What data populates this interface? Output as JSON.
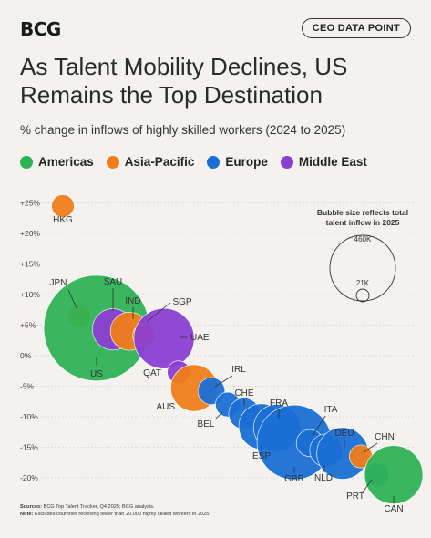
{
  "header": {
    "logo": "BCG",
    "badge": "CEO DATA POINT",
    "title": "As Talent Mobility Declines, US Remains the Top Destination",
    "subtitle": "% change in inflows of highly skilled workers (2024 to 2025)"
  },
  "legend": [
    {
      "label": "Americas",
      "color": "#2fb255"
    },
    {
      "label": "Asia-Pacific",
      "color": "#f07d1a"
    },
    {
      "label": "Europe",
      "color": "#1a6fd4"
    },
    {
      "label": "Middle East",
      "color": "#8a3fd1"
    }
  ],
  "size_legend": {
    "title_line1": "Bubble size reflects total",
    "title_line2": "talent inflow in 2025",
    "large_label": "460K",
    "small_label": "21K"
  },
  "chart_data": {
    "type": "scatter",
    "subtype": "bubble",
    "ylabel": "% change in inflows of highly skilled workers (2024 to 2025)",
    "y_ticks": [
      "+25%",
      "+20%",
      "+15%",
      "+10%",
      "+5%",
      "0%",
      "-5%",
      "-10%",
      "-15%",
      "-20%"
    ],
    "ylim": [
      -22,
      26
    ],
    "points": [
      {
        "label": "HKG",
        "region": "Asia-Pacific",
        "y": 24.5,
        "size": 21
      },
      {
        "label": "JPN",
        "region": "Asia-Pacific",
        "y": 6.5,
        "size": 21
      },
      {
        "label": "US",
        "region": "Americas",
        "y": 4.5,
        "size": 460
      },
      {
        "label": "SAU",
        "region": "Middle East",
        "y": 4.3,
        "size": 70
      },
      {
        "label": "IND",
        "region": "Asia-Pacific",
        "y": 4.0,
        "size": 60
      },
      {
        "label": "SGP",
        "region": "Asia-Pacific",
        "y": 3.3,
        "size": 21
      },
      {
        "label": "UAE",
        "region": "Middle East",
        "y": 2.8,
        "size": 150
      },
      {
        "label": "QAT",
        "region": "Middle East",
        "y": -2.7,
        "size": 21
      },
      {
        "label": "AUS",
        "region": "Asia-Pacific",
        "y": -5.3,
        "size": 90
      },
      {
        "label": "IRL",
        "region": "Europe",
        "y": -5.8,
        "size": 30
      },
      {
        "label": "BEL",
        "region": "Europe",
        "y": -8.0,
        "size": 25
      },
      {
        "label": "CHE",
        "region": "Europe",
        "y": -9.5,
        "size": 40
      },
      {
        "label": "ESP",
        "region": "Europe",
        "y": -11.6,
        "size": 85
      },
      {
        "label": "FRA",
        "region": "Europe",
        "y": -11.8,
        "size": 90
      },
      {
        "label": "GBR",
        "region": "Europe",
        "y": -14.2,
        "size": 230
      },
      {
        "label": "ITA",
        "region": "Europe",
        "y": -14.3,
        "size": 30
      },
      {
        "label": "NLD",
        "region": "Europe",
        "y": -15.5,
        "size": 45
      },
      {
        "label": "DEU",
        "region": "Europe",
        "y": -16.0,
        "size": 110
      },
      {
        "label": "CHN",
        "region": "Asia-Pacific",
        "y": -16.5,
        "size": 22
      },
      {
        "label": "PRT",
        "region": "Europe",
        "y": -19.5,
        "size": 22
      },
      {
        "label": "CAN",
        "region": "Americas",
        "y": -19.5,
        "size": 140
      }
    ]
  },
  "footer": {
    "sources_label": "Sources:",
    "sources_text": "BCG Top Talent Tracker, Q4 2025; BCG analysis.",
    "note_label": "Note:",
    "note_text": "Excludes countries receiving fewer than 20,000 highly skilled workers in 2025."
  }
}
